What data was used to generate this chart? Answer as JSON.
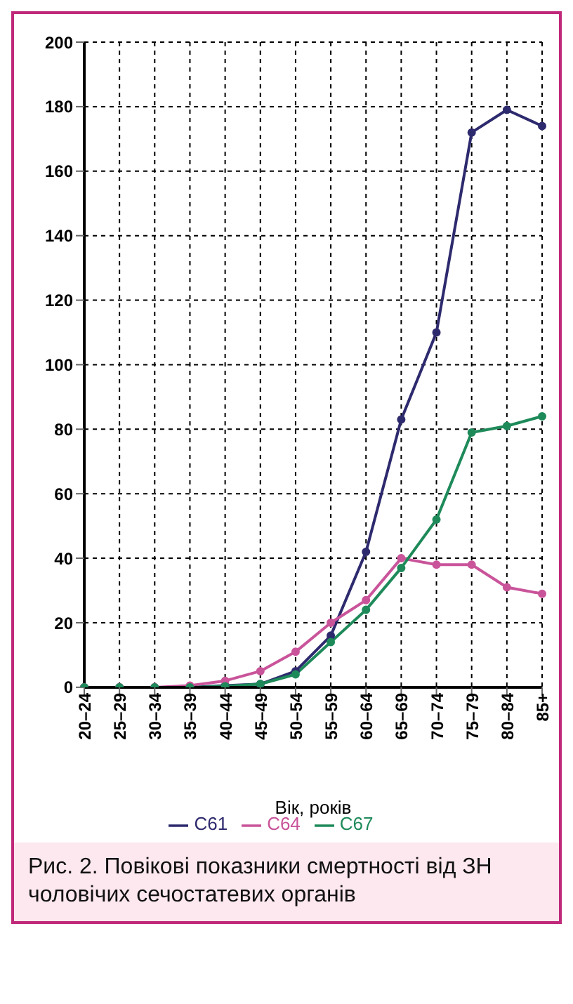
{
  "chart_data": {
    "type": "line",
    "title": "Рис. 2. Повікові показники смертності від ЗН чоловічих сечостатевих органів",
    "xlabel": "Вік, років",
    "categories": [
      "20–24",
      "25–29",
      "30–34",
      "35–39",
      "40–44",
      "45–49",
      "50–54",
      "55–59",
      "60–64",
      "65–69",
      "70–74",
      "75–79",
      "80–84",
      "85+"
    ],
    "series": [
      {
        "name": "C61",
        "color": "#2e2a6e",
        "values": [
          0,
          0,
          0,
          0,
          0.5,
          1,
          5,
          16,
          42,
          83,
          110,
          172,
          179,
          174
        ]
      },
      {
        "name": "C64",
        "color": "#c9549a",
        "values": [
          0,
          0,
          0,
          0.5,
          2,
          5,
          11,
          20,
          27,
          40,
          38,
          38,
          31,
          29
        ]
      },
      {
        "name": "C67",
        "color": "#1e8a5a",
        "values": [
          0,
          0,
          0,
          0,
          0.3,
          1,
          4,
          14,
          24,
          37,
          52,
          79,
          81,
          84
        ]
      }
    ],
    "ylim": [
      0,
      200
    ],
    "yticks": [
      0,
      20,
      40,
      60,
      80,
      100,
      120,
      140,
      160,
      180,
      200
    ],
    "grid": true,
    "legend": "bottom",
    "marker": "circle",
    "line_style": "solid"
  }
}
